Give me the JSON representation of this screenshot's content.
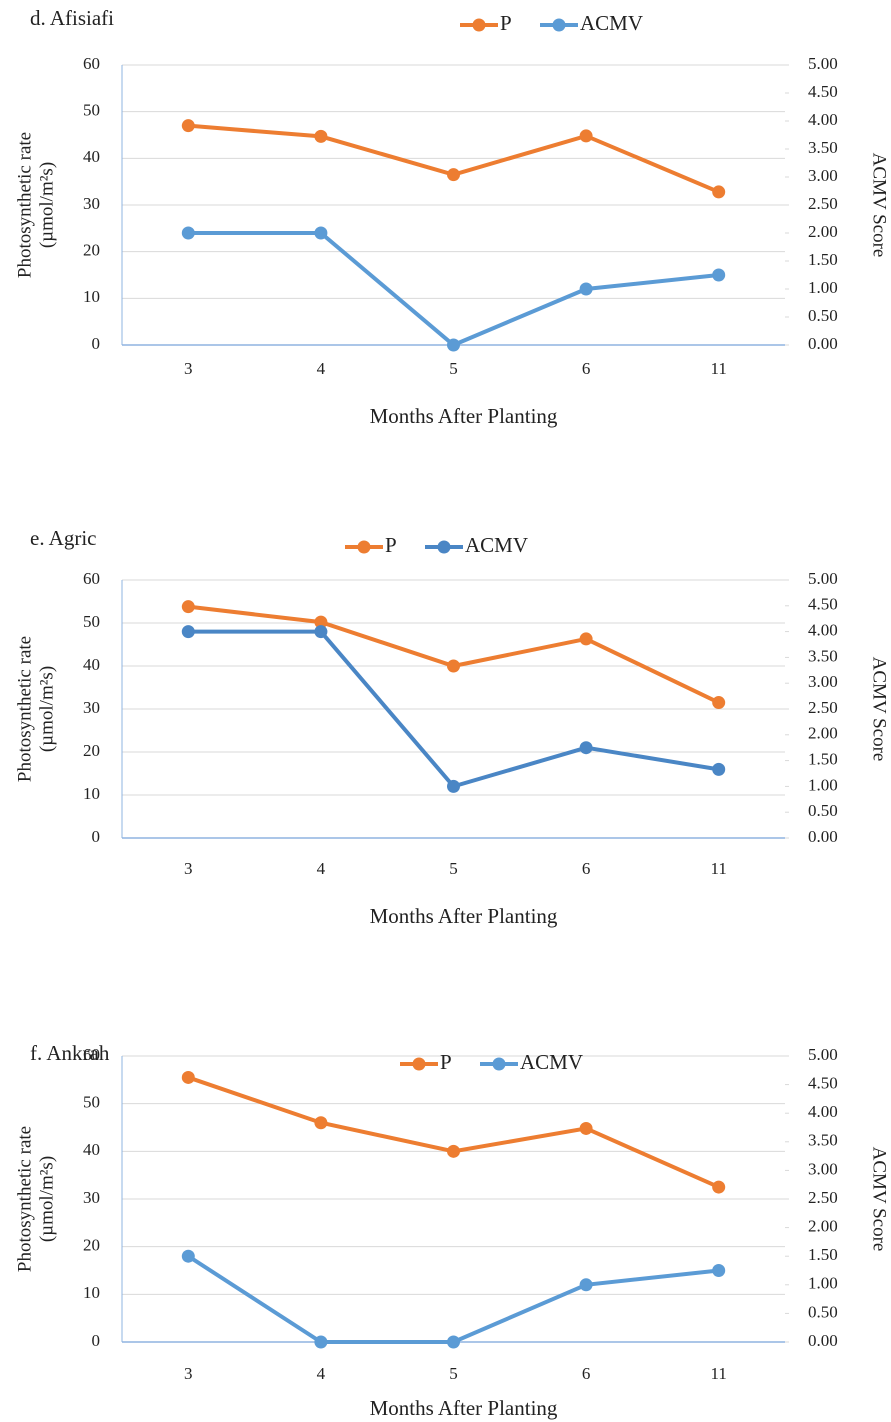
{
  "chart_data": [
    {
      "type": "line",
      "title": "d. Afisiafi",
      "categories": [
        "3",
        "4",
        "5",
        "6",
        "11"
      ],
      "x_label": "Months After Planting",
      "y_label": [
        "Photosynthetic rate",
        "(µmol/m²s)"
      ],
      "y2_label": "ACMV Score",
      "series": [
        {
          "name": "P",
          "color": "#ed7d31",
          "values": [
            47,
            44.7,
            36.5,
            44.8,
            32.8
          ]
        },
        {
          "name": "ACMV",
          "color": "#5b9bd5",
          "axis": "y2",
          "values": [
            2,
            2,
            0,
            1,
            1.25
          ]
        }
      ],
      "ylim": [
        0,
        60
      ],
      "yticks": [
        0,
        10,
        20,
        30,
        40,
        50,
        60
      ],
      "y2lim": [
        0,
        5
      ],
      "y2ticks": [
        {
          "value": 0,
          "label": "0.00"
        },
        {
          "value": 0.5,
          "label": "0.50"
        },
        {
          "value": 1,
          "label": "1.00"
        },
        {
          "value": 1.5,
          "label": "1.50"
        },
        {
          "value": 2,
          "label": "2.00"
        },
        {
          "value": 2.5,
          "label": "2.50"
        },
        {
          "value": 3,
          "label": "3.00"
        },
        {
          "value": 3.5,
          "label": "3.50"
        },
        {
          "value": 4,
          "label": "4.00"
        },
        {
          "value": 4.5,
          "label": "4.50"
        },
        {
          "value": 5,
          "label": "5.00"
        }
      ],
      "grid": true,
      "legend": "top"
    },
    {
      "type": "line",
      "title": "e. Agric",
      "categories": [
        "3",
        "4",
        "5",
        "6",
        "11"
      ],
      "x_label": "Months After Planting",
      "y_label": [
        "Photosynthetic rate",
        "(µmol/m²s)"
      ],
      "y2_label": "ACMV Score",
      "series": [
        {
          "name": "P",
          "color": "#ed7d31",
          "values": [
            53.8,
            50.2,
            40,
            46.3,
            31.5
          ]
        },
        {
          "name": "ACMV",
          "color": "#4a86c5",
          "axis": "y2",
          "values": [
            4,
            4,
            1,
            1.75,
            1.33
          ]
        }
      ],
      "ylim": [
        0,
        60
      ],
      "yticks": [
        0,
        10,
        20,
        30,
        40,
        50,
        60
      ],
      "y2lim": [
        0,
        5
      ],
      "y2ticks": [
        {
          "value": 0,
          "label": "0.00"
        },
        {
          "value": 0.5,
          "label": "0.50"
        },
        {
          "value": 1,
          "label": "1.00"
        },
        {
          "value": 1.5,
          "label": "1.50"
        },
        {
          "value": 2,
          "label": "2.00"
        },
        {
          "value": 2.5,
          "label": "2.50"
        },
        {
          "value": 3,
          "label": "3.00"
        },
        {
          "value": 3.5,
          "label": "3.50"
        },
        {
          "value": 4,
          "label": "4.00"
        },
        {
          "value": 4.5,
          "label": "4.50"
        },
        {
          "value": 5,
          "label": "5.00"
        }
      ],
      "grid": true,
      "legend": "top"
    },
    {
      "type": "line",
      "title": "f. Ankrah",
      "categories": [
        "3",
        "4",
        "5",
        "6",
        "11"
      ],
      "x_label": "Months After Planting",
      "y_label": [
        "Photosynthetic rate",
        "(µmol/m²s)"
      ],
      "y2_label": "ACMV Score",
      "series": [
        {
          "name": "P",
          "color": "#ed7d31",
          "values": [
            55.5,
            46,
            40,
            44.8,
            32.5
          ]
        },
        {
          "name": "ACMV",
          "color": "#5b9bd5",
          "axis": "y2",
          "values": [
            1.5,
            0,
            0,
            1,
            1.25
          ]
        }
      ],
      "ylim": [
        0,
        60
      ],
      "yticks": [
        0,
        10,
        20,
        30,
        40,
        50,
        60
      ],
      "y2lim": [
        0,
        5
      ],
      "y2ticks": [
        {
          "value": 0,
          "label": "0.00"
        },
        {
          "value": 0.5,
          "label": "0.50"
        },
        {
          "value": 1,
          "label": "1.00"
        },
        {
          "value": 1.5,
          "label": "1.50"
        },
        {
          "value": 2,
          "label": "2.00"
        },
        {
          "value": 2.5,
          "label": "2.50"
        },
        {
          "value": 3,
          "label": "3.00"
        },
        {
          "value": 3.5,
          "label": "3.50"
        },
        {
          "value": 4,
          "label": "4.00"
        },
        {
          "value": 4.5,
          "label": "4.50"
        },
        {
          "value": 5,
          "label": "5.00"
        }
      ],
      "grid": true,
      "legend": "top"
    }
  ]
}
